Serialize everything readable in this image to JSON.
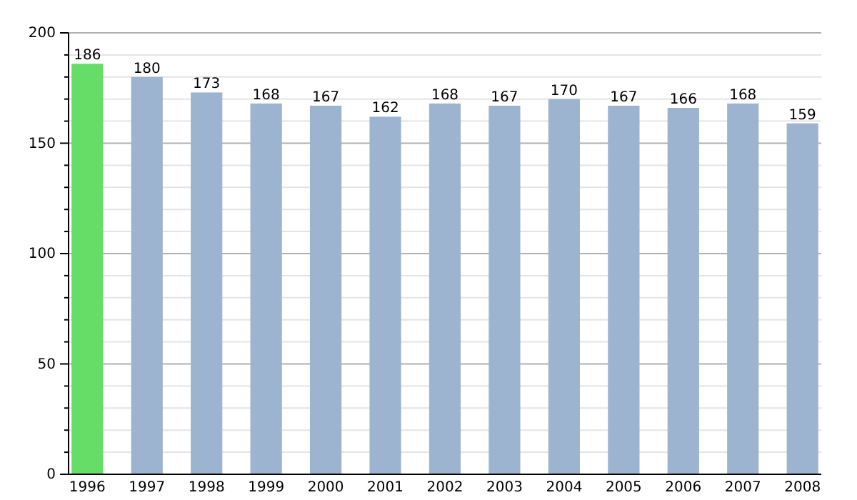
{
  "chart_data": {
    "type": "bar",
    "categories": [
      "1996",
      "1997",
      "1998",
      "1999",
      "2000",
      "2001",
      "2002",
      "2003",
      "2004",
      "2005",
      "2006",
      "2007",
      "2008"
    ],
    "values": [
      186,
      180,
      173,
      168,
      167,
      162,
      168,
      167,
      170,
      167,
      166,
      168,
      159
    ],
    "colors": [
      "#66dd66",
      "#9db4d0",
      "#9db4d0",
      "#9db4d0",
      "#9db4d0",
      "#9db4d0",
      "#9db4d0",
      "#9db4d0",
      "#9db4d0",
      "#9db4d0",
      "#9db4d0",
      "#9db4d0",
      "#9db4d0"
    ],
    "ylim": [
      0,
      200
    ],
    "yticks": [
      0,
      {
        "value": 10,
        "label": null
      },
      {
        "value": 20,
        "label": null
      },
      {
        "value": 30,
        "label": null
      },
      {
        "value": 40,
        "label": null
      },
      50,
      {
        "value": 60,
        "label": null
      },
      {
        "value": 70,
        "label": null
      },
      {
        "value": 80,
        "label": null
      },
      {
        "value": 90,
        "label": null
      },
      100,
      {
        "value": 110,
        "label": null
      },
      {
        "value": 120,
        "label": null
      },
      {
        "value": 130,
        "label": null
      },
      {
        "value": 140,
        "label": null
      },
      150,
      {
        "value": 160,
        "label": null
      },
      {
        "value": 170,
        "label": null
      },
      {
        "value": 180,
        "label": null
      },
      {
        "value": 190,
        "label": null
      },
      200
    ],
    "grid": "y",
    "data_labels": true
  }
}
